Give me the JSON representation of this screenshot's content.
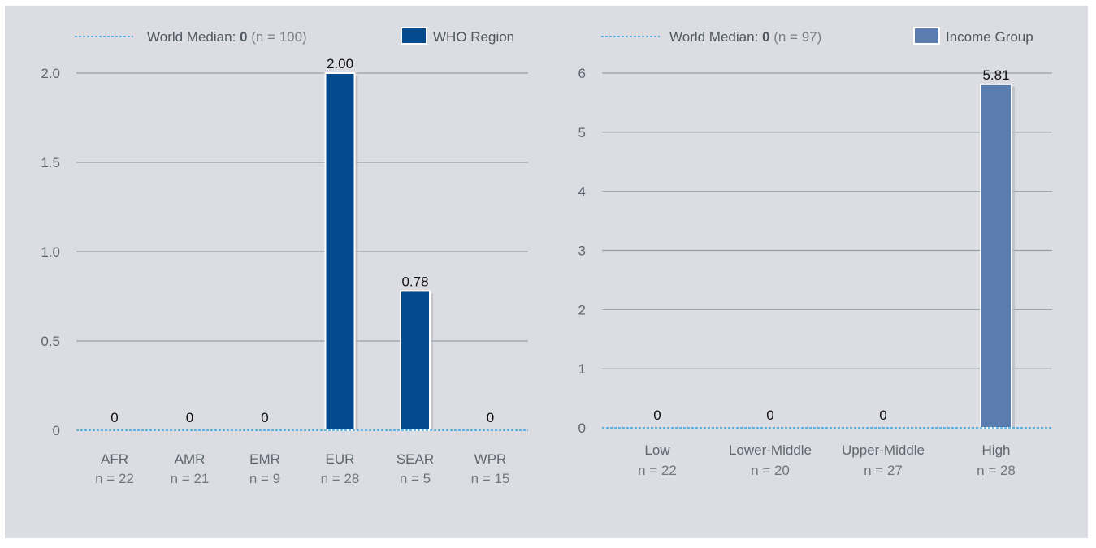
{
  "chart_data": [
    {
      "type": "bar",
      "categories": [
        "AFR",
        "AMR",
        "EMR",
        "EUR",
        "SEAR",
        "WPR"
      ],
      "n_labels": [
        "n = 22",
        "n = 21",
        "n = 9",
        "n = 28",
        "n = 5",
        "n = 15"
      ],
      "series": [
        {
          "name": "WHO Region",
          "values": [
            0,
            0,
            0,
            2.0,
            0.78,
            0
          ]
        }
      ],
      "value_labels": [
        "0",
        "0",
        "0",
        "2.00",
        "0.78",
        "0"
      ],
      "ylim": [
        0,
        2.0
      ],
      "yticks": [
        0,
        0.5,
        1.0,
        1.5,
        2.0
      ],
      "ytick_labels": [
        "0",
        "0.5",
        "1.0",
        "1.5",
        "2.0"
      ],
      "median": {
        "label": "World Median:",
        "value": "0",
        "n": "(n = 100)",
        "y": 0
      },
      "bar_color": "#024a8c",
      "grid": true,
      "legend_position": "top"
    },
    {
      "type": "bar",
      "categories": [
        "Low",
        "Lower-Middle",
        "Upper-Middle",
        "High"
      ],
      "n_labels": [
        "n = 22",
        "n = 20",
        "n = 27",
        "n = 28"
      ],
      "series": [
        {
          "name": "Income Group",
          "values": [
            0,
            0,
            0,
            5.81
          ]
        }
      ],
      "value_labels": [
        "0",
        "0",
        "0",
        "5.81"
      ],
      "ylim": [
        0,
        6
      ],
      "yticks": [
        0,
        1,
        2,
        3,
        4,
        5,
        6
      ],
      "ytick_labels": [
        "0",
        "1",
        "2",
        "3",
        "4",
        "5",
        "6"
      ],
      "median": {
        "label": "World Median:",
        "value": "0",
        "n": "(n = 97)",
        "y": 0
      },
      "bar_color": "#5a7caf",
      "grid": true,
      "legend_position": "top"
    }
  ],
  "colors": {
    "background": "#dcdde2",
    "grid": "#9a9ea5",
    "median_line": "#3aa3dc",
    "text": "#5f6770"
  }
}
